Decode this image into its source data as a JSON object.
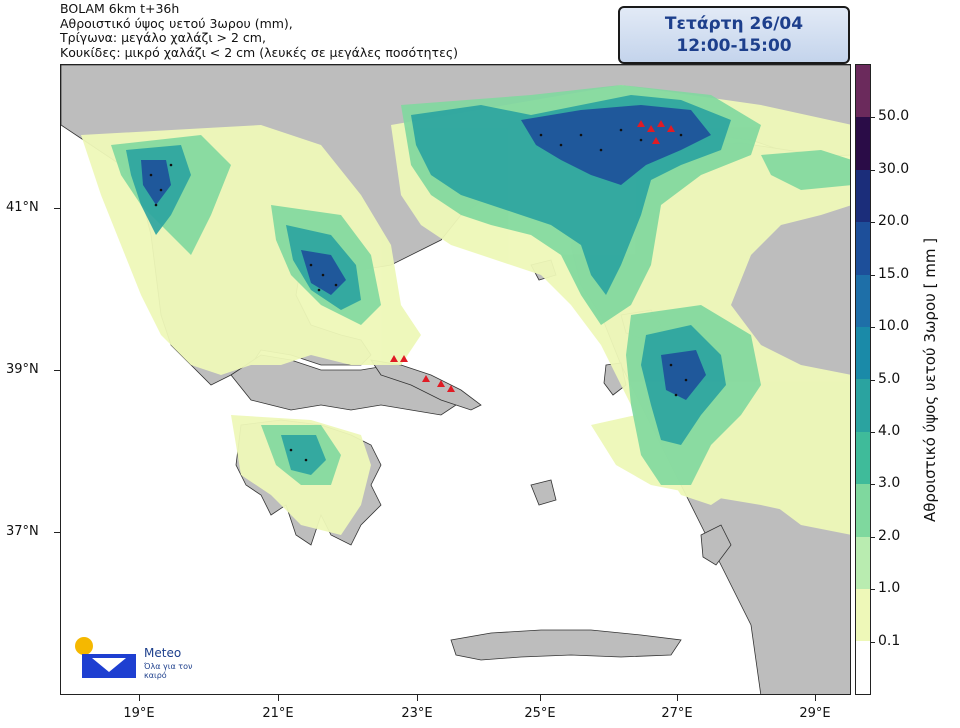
{
  "header": {
    "line1": "BOLAM 6km t+36h",
    "line2": "Αθροιστικό ύψος υετού 3ωρου (mm),",
    "line3": "Τρίγωνα: μεγάλο χαλάζι > 2 cm,",
    "line4": "Κουκίδες: μικρό χαλάζι < 2 cm (λευκές σε μεγάλες ποσότητες)"
  },
  "datebox": {
    "day": "Τετάρτη 26/04",
    "time": "12:00-15:00"
  },
  "lat_ticks": [
    "41°N",
    "39°N",
    "37°N"
  ],
  "lon_ticks": [
    "19°E",
    "21°E",
    "23°E",
    "25°E",
    "27°E",
    "29°E"
  ],
  "colorbar": {
    "title": "Αθροιστικό ύψος υετού 3ωρου [ mm ]",
    "labels": [
      "50.0",
      "30.0",
      "20.0",
      "15.0",
      "10.0",
      "5.0",
      "4.0",
      "3.0",
      "2.0",
      "1.0",
      "0.1"
    ],
    "colors": [
      "#6b2a5c",
      "#2a0c47",
      "#1b2d7a",
      "#1d4f9a",
      "#1e6fa8",
      "#1a8aa8",
      "#2aa3a0",
      "#3fbb9a",
      "#7fd89e",
      "#b9ecb0",
      "#eef8b8",
      "#ffffff"
    ]
  },
  "legend_map": {
    "large_hail_symbol": "triangle-icon",
    "small_hail_symbol": "dot-icon",
    "land_color": "#bdbdbd",
    "sea_color": "#ffffff",
    "hail_triangle_color": "#e01b24"
  },
  "logo": {
    "name": "Meteo",
    "tagline": "Όλα για τον καιρό"
  }
}
